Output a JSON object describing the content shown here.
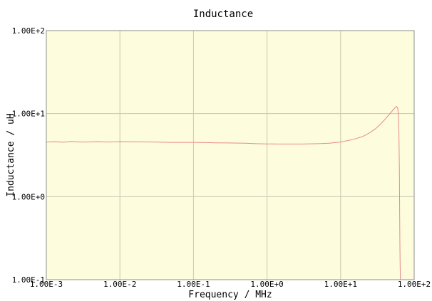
{
  "chart_data": {
    "type": "line",
    "title": "Inductance",
    "xlabel": "Frequency / MHz",
    "ylabel": "Inductance / uH",
    "x_scale": "log",
    "y_scale": "log",
    "xlim": [
      0.001,
      100
    ],
    "ylim": [
      0.1,
      100
    ],
    "grid": true,
    "legend": "none",
    "x_ticks": [
      {
        "value": 0.001,
        "label": "1.00E-3"
      },
      {
        "value": 0.01,
        "label": "1.00E-2"
      },
      {
        "value": 0.1,
        "label": "1.00E-1"
      },
      {
        "value": 1,
        "label": "1.00E+0"
      },
      {
        "value": 10,
        "label": "1.00E+1"
      },
      {
        "value": 100,
        "label": "1.00E+2"
      }
    ],
    "y_ticks": [
      {
        "value": 0.1,
        "label": "1.00E-1"
      },
      {
        "value": 1,
        "label": "1.00E+0"
      },
      {
        "value": 10,
        "label": "1.00E+1"
      },
      {
        "value": 100,
        "label": "1.00E+2"
      }
    ],
    "colors": {
      "plot_background": "#fdfcdc",
      "grid": "#c8c8b4",
      "frame": "#8c8c8c",
      "line": "#e8898b"
    },
    "series": [
      {
        "x": [
          0.001,
          0.0013,
          0.0017,
          0.0022,
          0.003,
          0.004,
          0.005,
          0.007,
          0.01,
          0.015,
          0.02,
          0.03,
          0.05,
          0.07,
          0.1,
          0.15,
          0.2,
          0.3,
          0.5,
          0.7,
          1,
          1.5,
          2,
          3,
          5,
          7,
          10,
          15,
          20,
          25,
          30,
          35,
          40,
          45,
          50,
          55,
          58,
          60,
          61,
          62,
          63,
          63.5,
          64,
          64.5,
          65
        ],
        "y": [
          4.55,
          4.6,
          4.52,
          4.62,
          4.55,
          4.57,
          4.6,
          4.55,
          4.6,
          4.58,
          4.58,
          4.55,
          4.5,
          4.5,
          4.5,
          4.48,
          4.45,
          4.43,
          4.4,
          4.35,
          4.32,
          4.3,
          4.3,
          4.3,
          4.35,
          4.4,
          4.55,
          4.9,
          5.3,
          5.9,
          6.6,
          7.5,
          8.5,
          9.6,
          10.7,
          11.8,
          12.2,
          11.4,
          9.5,
          6.0,
          2.0,
          0.6,
          0.25,
          0.14,
          0.1
        ]
      }
    ]
  }
}
